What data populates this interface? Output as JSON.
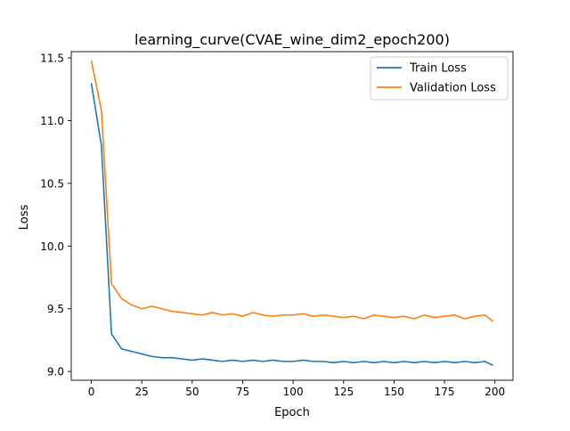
{
  "chart_data": {
    "type": "line",
    "title": "learning_curve(CVAE_wine_dim2_epoch200)",
    "xlabel": "Epoch",
    "ylabel": "Loss",
    "xlim": [
      -9.95,
      208.95
    ],
    "ylim": [
      8.93,
      11.55
    ],
    "xticks": [
      0,
      25,
      50,
      75,
      100,
      125,
      150,
      175,
      200
    ],
    "xtick_labels": [
      "0",
      "25",
      "50",
      "75",
      "100",
      "125",
      "150",
      "175",
      "200"
    ],
    "yticks": [
      9.0,
      9.5,
      10.0,
      10.5,
      11.0,
      11.5
    ],
    "ytick_labels": [
      "9.0",
      "9.5",
      "10.0",
      "10.5",
      "11.0",
      "11.5"
    ],
    "grid": false,
    "legend_position": "top-right",
    "x": [
      0,
      5,
      10,
      15,
      20,
      25,
      30,
      35,
      40,
      45,
      50,
      55,
      60,
      65,
      70,
      75,
      80,
      85,
      90,
      95,
      100,
      105,
      110,
      115,
      120,
      125,
      130,
      135,
      140,
      145,
      150,
      155,
      160,
      165,
      170,
      175,
      180,
      185,
      190,
      195,
      199
    ],
    "series": [
      {
        "name": "Train Loss",
        "color": "#1f77b4",
        "values": [
          11.3,
          10.8,
          9.3,
          9.18,
          9.16,
          9.14,
          9.12,
          9.11,
          9.11,
          9.1,
          9.09,
          9.1,
          9.09,
          9.08,
          9.09,
          9.08,
          9.09,
          9.08,
          9.09,
          9.08,
          9.08,
          9.09,
          9.08,
          9.08,
          9.07,
          9.08,
          9.07,
          9.08,
          9.07,
          9.08,
          9.07,
          9.08,
          9.07,
          9.08,
          9.07,
          9.08,
          9.07,
          9.08,
          9.07,
          9.08,
          9.05
        ]
      },
      {
        "name": "Validation Loss",
        "color": "#ff7f0e",
        "values": [
          11.48,
          11.08,
          9.7,
          9.58,
          9.53,
          9.5,
          9.52,
          9.5,
          9.48,
          9.47,
          9.46,
          9.45,
          9.47,
          9.45,
          9.46,
          9.44,
          9.47,
          9.45,
          9.44,
          9.45,
          9.45,
          9.46,
          9.44,
          9.45,
          9.44,
          9.43,
          9.44,
          9.42,
          9.45,
          9.44,
          9.43,
          9.44,
          9.42,
          9.45,
          9.43,
          9.44,
          9.45,
          9.42,
          9.44,
          9.45,
          9.4
        ]
      }
    ]
  }
}
